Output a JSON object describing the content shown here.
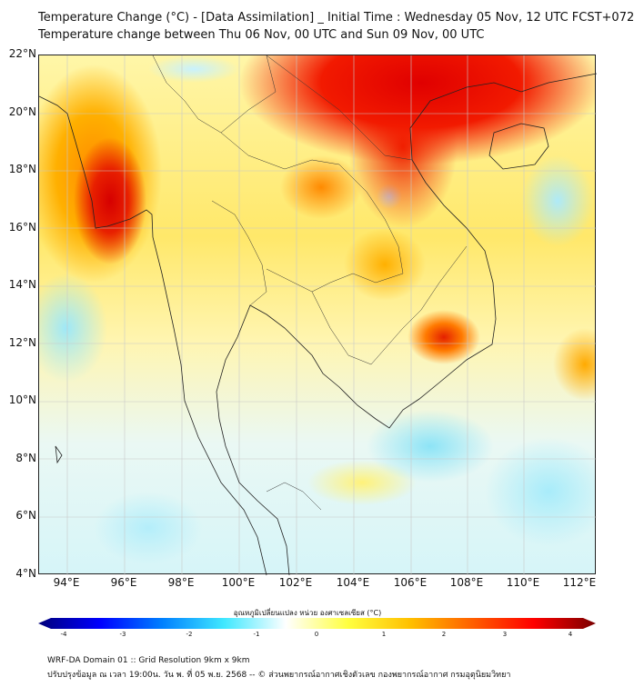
{
  "header": {
    "title_line1": "Temperature Change (°C) - [Data Assimilation] _ Initial Time : Wednesday 05 Nov, 12 UTC FCST+072",
    "title_line2": "Temperature change between Thu 06 Nov, 00 UTC and Sun 09 Nov, 00 UTC"
  },
  "map": {
    "lat_labels": [
      "22°N",
      "20°N",
      "18°N",
      "16°N",
      "14°N",
      "12°N",
      "10°N",
      "8°N",
      "6°N",
      "4°N"
    ],
    "lon_labels": [
      "94°E",
      "96°E",
      "98°E",
      "100°E",
      "102°E",
      "104°E",
      "106°E",
      "108°E",
      "110°E",
      "112°E"
    ],
    "extent": {
      "lon": [
        93,
        112.5
      ],
      "lat": [
        4,
        22
      ]
    }
  },
  "colorbar": {
    "title": "อุณหภูมิเปลี่ยนแปลง หน่วย องศาเซลเซียส (°C)",
    "ticks": [
      "-4",
      "-3",
      "-2",
      "-1",
      "0",
      "1",
      "2",
      "3",
      "4"
    ],
    "colors": [
      "#00007a",
      "#0000ff",
      "#0080ff",
      "#40e8ff",
      "#ffffff",
      "#ffff40",
      "#ffc000",
      "#ff6000",
      "#ff0000",
      "#7a0000"
    ]
  },
  "footer": {
    "line1": "WRF-DA Domain 01 :: Grid Resolution 9km x 9km",
    "line2": "ปรับปรุงข้อมูล ณ เวลา 19:00น. วัน พ. ที่ 05 พ.ย. 2568 -- © ส่วนพยากรณ์อากาศเชิงตัวเลข กองพยากรณ์อากาศ กรมอุตุนิยมวิทยา"
  }
}
